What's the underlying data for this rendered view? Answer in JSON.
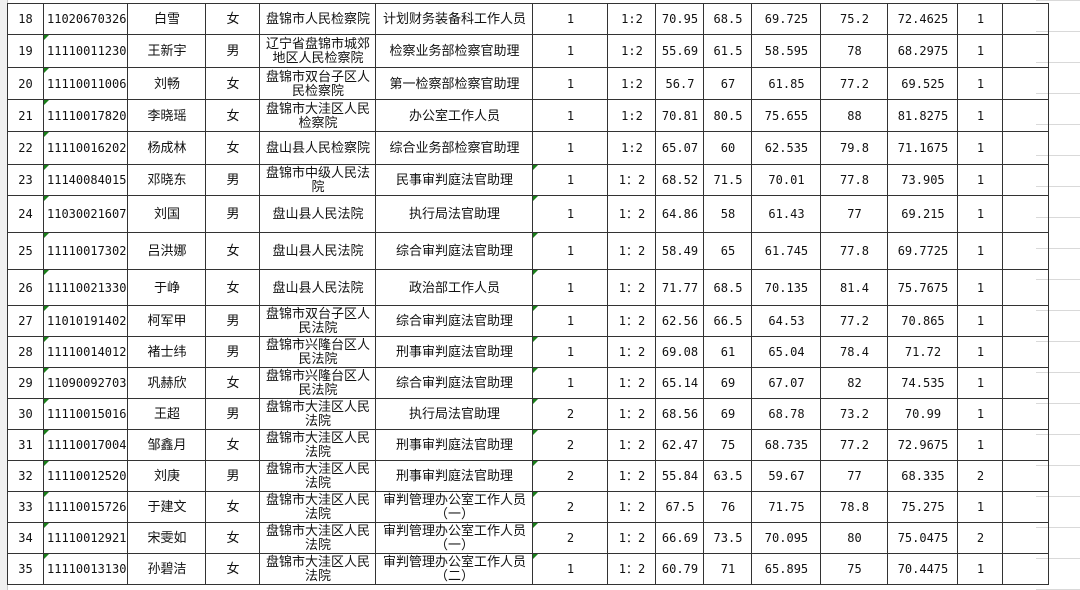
{
  "rows": [
    {
      "no": "18",
      "id": "11020670326",
      "name": "白雪",
      "gender": "女",
      "unit": "盘锦市人民检察院",
      "position": "计划财务装备科工作人员",
      "quota": "1",
      "ratio": "1:2",
      "written": "70.95",
      "written2": "68.5",
      "written_avg": "69.725",
      "interview": "75.2",
      "total": "72.4625",
      "rank": "1",
      "note": ""
    },
    {
      "no": "19",
      "id": "11110011230",
      "name": "王新宇",
      "gender": "男",
      "unit": "辽宁省盘锦市城郊地区人民检察院",
      "position": "检察业务部检察官助理",
      "quota": "1",
      "ratio": "1:2",
      "written": "55.69",
      "written2": "61.5",
      "written_avg": "58.595",
      "interview": "78",
      "total": "68.2975",
      "rank": "1",
      "note": ""
    },
    {
      "no": "20",
      "id": "11110011006",
      "name": "刘畅",
      "gender": "女",
      "unit": "盘锦市双台子区人民检察院",
      "position": "第一检察部检察官助理",
      "quota": "1",
      "ratio": "1:2",
      "written": "56.7",
      "written2": "67",
      "written_avg": "61.85",
      "interview": "77.2",
      "total": "69.525",
      "rank": "1",
      "note": ""
    },
    {
      "no": "21",
      "id": "11110017820",
      "name": "李晓瑶",
      "gender": "女",
      "unit": "盘锦市大洼区人民检察院",
      "position": "办公室工作人员",
      "quota": "1",
      "ratio": "1:2",
      "written": "70.81",
      "written2": "80.5",
      "written_avg": "75.655",
      "interview": "88",
      "total": "81.8275",
      "rank": "1",
      "note": ""
    },
    {
      "no": "22",
      "id": "11110016202",
      "name": "杨成林",
      "gender": "女",
      "unit": "盘山县人民检察院",
      "position": "综合业务部检察官助理",
      "quota": "1",
      "ratio": "1:2",
      "written": "65.07",
      "written2": "60",
      "written_avg": "62.535",
      "interview": "79.8",
      "total": "71.1675",
      "rank": "1",
      "note": ""
    },
    {
      "no": "23",
      "id": "11140084015",
      "name": "邓晓东",
      "gender": "男",
      "unit": "盘锦市中级人民法院",
      "position": "民事审判庭法官助理",
      "quota": "1",
      "ratio": "1：2",
      "written": "68.52",
      "written2": "71.5",
      "written_avg": "70.01",
      "interview": "77.8",
      "total": "73.905",
      "rank": "1",
      "note": ""
    },
    {
      "no": "24",
      "id": "11030021607",
      "name": "刘国",
      "gender": "男",
      "unit": "盘山县人民法院",
      "position": "执行局法官助理",
      "quota": "1",
      "ratio": "1：2",
      "written": "64.86",
      "written2": "58",
      "written_avg": "61.43",
      "interview": "77",
      "total": "69.215",
      "rank": "1",
      "note": ""
    },
    {
      "no": "25",
      "id": "11110017302",
      "name": "吕洪娜",
      "gender": "女",
      "unit": "盘山县人民法院",
      "position": "综合审判庭法官助理",
      "quota": "1",
      "ratio": "1：2",
      "written": "58.49",
      "written2": "65",
      "written_avg": "61.745",
      "interview": "77.8",
      "total": "69.7725",
      "rank": "1",
      "note": ""
    },
    {
      "no": "26",
      "id": "11110021330",
      "name": "于峥",
      "gender": "女",
      "unit": "盘山县人民法院",
      "position": "政治部工作人员",
      "quota": "1",
      "ratio": "1：2",
      "written": "71.77",
      "written2": "68.5",
      "written_avg": "70.135",
      "interview": "81.4",
      "total": "75.7675",
      "rank": "1",
      "note": ""
    },
    {
      "no": "27",
      "id": "11010191402",
      "name": "柯军甲",
      "gender": "男",
      "unit": "盘锦市双台子区人民法院",
      "position": "综合审判庭法官助理",
      "quota": "1",
      "ratio": "1：2",
      "written": "62.56",
      "written2": "66.5",
      "written_avg": "64.53",
      "interview": "77.2",
      "total": "70.865",
      "rank": "1",
      "note": ""
    },
    {
      "no": "28",
      "id": "11110014012",
      "name": "褚士纬",
      "gender": "男",
      "unit": "盘锦市兴隆台区人民法院",
      "position": "刑事审判庭法官助理",
      "quota": "1",
      "ratio": "1：2",
      "written": "69.08",
      "written2": "61",
      "written_avg": "65.04",
      "interview": "78.4",
      "total": "71.72",
      "rank": "1",
      "note": ""
    },
    {
      "no": "29",
      "id": "11090092703",
      "name": "巩赫欣",
      "gender": "女",
      "unit": "盘锦市兴隆台区人民法院",
      "position": "综合审判庭法官助理",
      "quota": "1",
      "ratio": "1：2",
      "written": "65.14",
      "written2": "69",
      "written_avg": "67.07",
      "interview": "82",
      "total": "74.535",
      "rank": "1",
      "note": ""
    },
    {
      "no": "30",
      "id": "11110015016",
      "name": "王超",
      "gender": "男",
      "unit": "盘锦市大洼区人民法院",
      "position": "执行局法官助理",
      "quota": "2",
      "ratio": "1：2",
      "written": "68.56",
      "written2": "69",
      "written_avg": "68.78",
      "interview": "73.2",
      "total": "70.99",
      "rank": "1",
      "note": ""
    },
    {
      "no": "31",
      "id": "11110017004",
      "name": "邹鑫月",
      "gender": "女",
      "unit": "盘锦市大洼区人民法院",
      "position": "刑事审判庭法官助理",
      "quota": "2",
      "ratio": "1：2",
      "written": "62.47",
      "written2": "75",
      "written_avg": "68.735",
      "interview": "77.2",
      "total": "72.9675",
      "rank": "1",
      "note": ""
    },
    {
      "no": "32",
      "id": "11110012520",
      "name": "刘庚",
      "gender": "男",
      "unit": "盘锦市大洼区人民法院",
      "position": "刑事审判庭法官助理",
      "quota": "2",
      "ratio": "1：2",
      "written": "55.84",
      "written2": "63.5",
      "written_avg": "59.67",
      "interview": "77",
      "total": "68.335",
      "rank": "2",
      "note": ""
    },
    {
      "no": "33",
      "id": "11110015726",
      "name": "于建文",
      "gender": "女",
      "unit": "盘锦市大洼区人民法院",
      "position": "审判管理办公室工作人员（一）",
      "quota": "2",
      "ratio": "1：2",
      "written": "67.5",
      "written2": "76",
      "written_avg": "71.75",
      "interview": "78.8",
      "total": "75.275",
      "rank": "1",
      "note": ""
    },
    {
      "no": "34",
      "id": "11110012921",
      "name": "宋雯如",
      "gender": "女",
      "unit": "盘锦市大洼区人民法院",
      "position": "审判管理办公室工作人员（一）",
      "quota": "2",
      "ratio": "1：2",
      "written": "66.69",
      "written2": "73.5",
      "written_avg": "70.095",
      "interview": "80",
      "total": "75.0475",
      "rank": "2",
      "note": ""
    },
    {
      "no": "35",
      "id": "11110013130",
      "name": "孙碧洁",
      "gender": "女",
      "unit": "盘锦市大洼区人民法院",
      "position": "审判管理办公室工作人员（二）",
      "quota": "1",
      "ratio": "1：2",
      "written": "60.79",
      "written2": "71",
      "written_avg": "65.895",
      "interview": "75",
      "total": "70.4475",
      "rank": "1",
      "note": ""
    }
  ],
  "colors": {
    "border": "#333333",
    "error_indicator": "#1a7f1a",
    "gridline": "#d9d9d9"
  }
}
